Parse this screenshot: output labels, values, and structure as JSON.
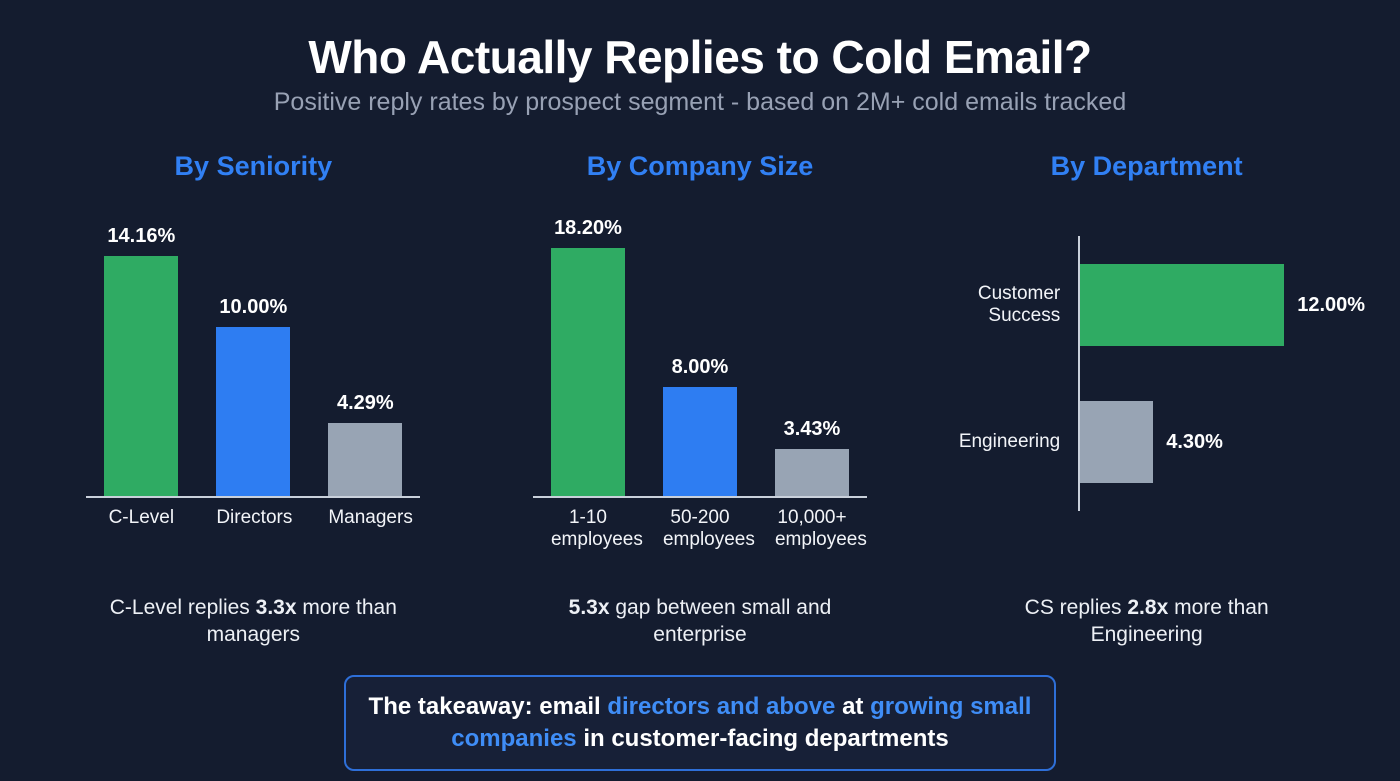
{
  "page": {
    "title": "Who Actually Replies to Cold Email?",
    "subtitle": "Positive reply rates by prospect segment - based on 2M+ cold emails tracked"
  },
  "colors": {
    "green": "#2fab63",
    "blue": "#2e7df2",
    "gray": "#98a4b4",
    "heading_blue": "#3180f4",
    "box_border_blue": "#2e6fd8",
    "background": "#141c2f"
  },
  "chart_data": [
    {
      "type": "bar",
      "orientation": "vertical",
      "title": "By Seniority",
      "categories": [
        "C-Level",
        "Directors",
        "Managers"
      ],
      "values": [
        14.16,
        10.0,
        4.29
      ],
      "value_labels": [
        "14.16%",
        "10.00%",
        "4.29%"
      ],
      "bar_colors": [
        "green",
        "blue",
        "gray"
      ],
      "xlabel": "",
      "ylabel": "",
      "grid": false,
      "legend": false,
      "caption": [
        {
          "text": "C-Level replies ",
          "bold": false
        },
        {
          "text": "3.3x",
          "bold": true
        },
        {
          "text": " more than managers",
          "bold": false
        }
      ]
    },
    {
      "type": "bar",
      "orientation": "vertical",
      "title": "By Company Size",
      "categories": [
        "1-10\nemployees",
        "50-200\nemployees",
        "10,000+\nemployees"
      ],
      "values": [
        18.2,
        8.0,
        3.43
      ],
      "value_labels": [
        "18.20%",
        "8.00%",
        "3.43%"
      ],
      "bar_colors": [
        "green",
        "blue",
        "gray"
      ],
      "xlabel": "",
      "ylabel": "",
      "grid": false,
      "legend": false,
      "caption": [
        {
          "text": "5.3x",
          "bold": true
        },
        {
          "text": " gap between small and enterprise",
          "bold": false
        }
      ]
    },
    {
      "type": "bar",
      "orientation": "horizontal",
      "title": "By Department",
      "categories": [
        "Customer\nSuccess",
        "Engineering"
      ],
      "values": [
        12.0,
        4.3
      ],
      "value_labels": [
        "12.00%",
        "4.30%"
      ],
      "bar_colors": [
        "green",
        "gray"
      ],
      "xlabel": "",
      "ylabel": "",
      "grid": false,
      "legend": false,
      "caption": [
        {
          "text": "CS replies ",
          "bold": false
        },
        {
          "text": "2.8x",
          "bold": true
        },
        {
          "text": " more than Engineering",
          "bold": false
        }
      ]
    }
  ],
  "takeaway": {
    "segments": [
      {
        "text": "The takeaway: email ",
        "accent": false
      },
      {
        "text": "directors and above",
        "accent": true
      },
      {
        "text": " at ",
        "accent": false
      },
      {
        "text": "growing small companies",
        "accent": true
      },
      {
        "text": " in customer-facing departments",
        "accent": false
      }
    ]
  }
}
